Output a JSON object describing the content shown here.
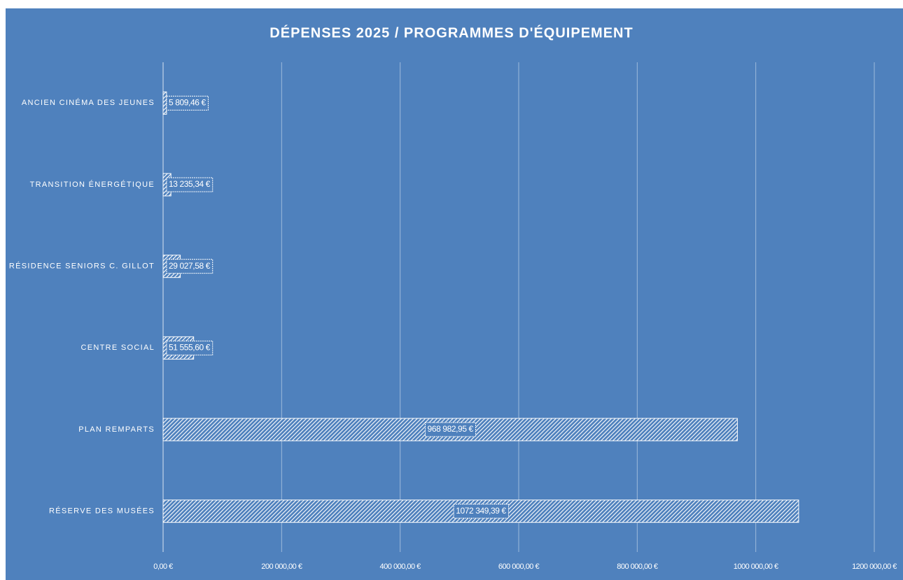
{
  "chart_data": {
    "type": "bar",
    "orientation": "horizontal",
    "title": "DÉPENSES 2025 / PROGRAMMES D'ÉQUIPEMENT",
    "categories": [
      "ANCIEN CINÉMA DES JEUNES",
      "TRANSITION ÉNERGÉTIQUE",
      "RÉSIDENCE SENIORS C. GILLOT",
      "CENTRE SOCIAL",
      "PLAN REMPARTS",
      "RÉSERVE DES MUSÉES"
    ],
    "values": [
      5809.46,
      13235.34,
      29027.58,
      51555.6,
      968982.95,
      1072349.39
    ],
    "value_labels": [
      "5 809,46 €",
      "13 235,34 €",
      "29 027,58 €",
      "51 555,60 €",
      "968 982,95 €",
      "1072 349,39 €"
    ],
    "color": "#ffffff",
    "xlim": [
      0,
      1200000
    ],
    "xticks": [
      {
        "value": 0,
        "label": "0,00 €"
      },
      {
        "value": 200000,
        "label": "200 000,00 €"
      },
      {
        "value": 400000,
        "label": "400 000,00 €"
      },
      {
        "value": 600000,
        "label": "600 000,00 €"
      },
      {
        "value": 800000,
        "label": "800 000,00 €"
      },
      {
        "value": 1000000,
        "label": "1000 000,00 €"
      },
      {
        "value": 1200000,
        "label": "1200 000,00 €"
      }
    ],
    "grid": true
  }
}
